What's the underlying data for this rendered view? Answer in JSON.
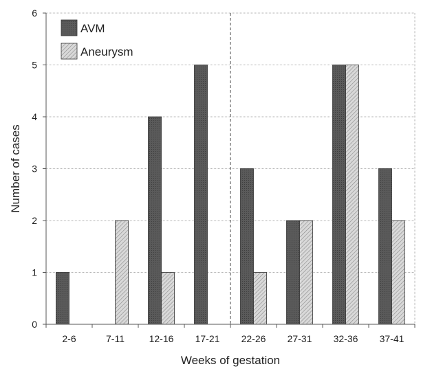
{
  "chart_data": {
    "type": "bar",
    "categories": [
      "2-6",
      "7-11",
      "12-16",
      "17-21",
      "22-26",
      "27-31",
      "32-36",
      "37-41"
    ],
    "series": [
      {
        "name": "AVM",
        "values": [
          1,
          0,
          4,
          5,
          3,
          2,
          5,
          3
        ]
      },
      {
        "name": "Aneurysm",
        "values": [
          0,
          2,
          1,
          0,
          1,
          2,
          5,
          2
        ]
      }
    ],
    "xlabel": "Weeks of gestation",
    "ylabel": "Number of cases",
    "ylim": [
      0,
      6
    ],
    "yticks": [
      "0",
      "1",
      "2",
      "3",
      "4",
      "5",
      "6"
    ],
    "grid": true,
    "legend_position": "top-left",
    "divider_after_category": "17-21",
    "colors": {
      "avm": "#555555",
      "aneurysm": "#cfcfcf",
      "grid": "#999999"
    }
  }
}
